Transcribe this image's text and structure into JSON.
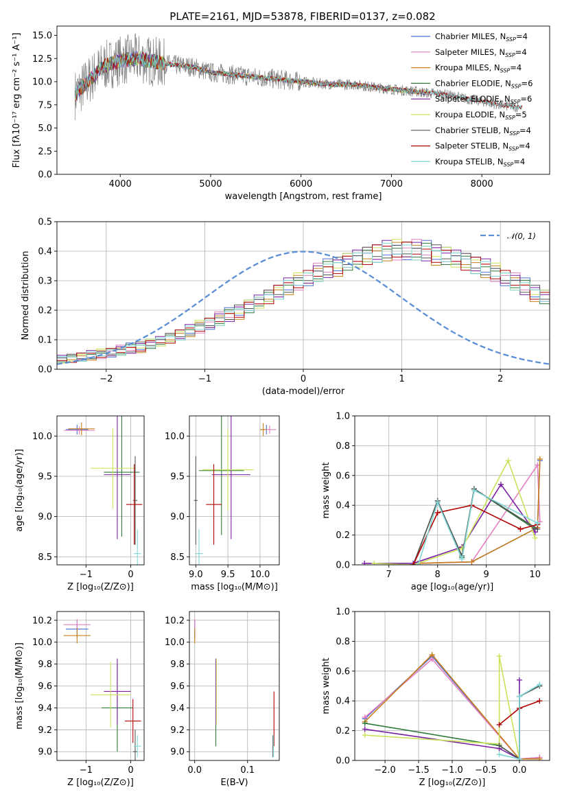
{
  "figure_title": "PLATE=2161, MJD=53878, FIBERID=0137, z=0.082",
  "colors": {
    "chabrier_miles": "#4a6fd6",
    "salpeter_miles": "#e37fc0",
    "kroupa_miles": "#c97f1a",
    "chabrier_elodie": "#2f7a3a",
    "salpeter_elodie": "#7b1fa2",
    "kroupa_elodie": "#c9e25a",
    "chabrier_stelib": "#555555",
    "salpeter_stelib": "#b00000",
    "kroupa_stelib": "#7fd6d6",
    "data_gray": "#808080",
    "normal_curve": "#5b8ed6"
  },
  "legend": {
    "spectrum": [
      {
        "name": "Chabrier MILES, N",
        "sub": "SSP",
        "tail": "=4",
        "color_key": "chabrier_miles"
      },
      {
        "name": "Salpeter MILES, N",
        "sub": "SSP",
        "tail": "=4",
        "color_key": "salpeter_miles"
      },
      {
        "name": "Kroupa MILES, N",
        "sub": "SSP",
        "tail": "=4",
        "color_key": "kroupa_miles"
      },
      {
        "name": "Chabrier ELODIE, N",
        "sub": "SSP",
        "tail": "=6",
        "color_key": "chabrier_elodie"
      },
      {
        "name": "Salpeter ELODIE, N",
        "sub": "SSP",
        "tail": "=6",
        "color_key": "salpeter_elodie"
      },
      {
        "name": "Kroupa ELODIE, N",
        "sub": "SSP",
        "tail": "=5",
        "color_key": "kroupa_elodie"
      },
      {
        "name": "Chabrier STELIB, N",
        "sub": "SSP",
        "tail": "=4",
        "color_key": "chabrier_stelib"
      },
      {
        "name": "Salpeter STELIB, N",
        "sub": "SSP",
        "tail": "=4",
        "color_key": "salpeter_stelib"
      },
      {
        "name": "Kroupa STELIB, N",
        "sub": "SSP",
        "tail": "=4",
        "color_key": "kroupa_stelib"
      }
    ],
    "residual": "𝒩(0, 1)"
  },
  "chart_data": [
    {
      "id": "spectrum",
      "type": "line",
      "xlabel": "wavelength [Angstrom, rest frame]",
      "ylabel": "Flux [fλ10⁻¹⁷ erg cm⁻² s⁻¹ A⁻¹]",
      "xlim": [
        3300,
        8750
      ],
      "ylim": [
        0,
        16
      ],
      "xticks": [
        4000,
        5000,
        6000,
        7000,
        8000
      ],
      "yticks": [
        0.0,
        2.5,
        5.0,
        7.5,
        10.0,
        12.5,
        15.0
      ],
      "grid": false,
      "legend_position": "upper-right",
      "continuum": {
        "x": [
          3500,
          3800,
          4000,
          4200,
          4400,
          4600,
          4800,
          5000,
          5200,
          5400,
          5600,
          5800,
          6000,
          6200,
          6400,
          6600,
          6800,
          7000,
          7200,
          7400,
          7600,
          7800,
          8000,
          8200,
          8450
        ],
        "y": [
          8.6,
          11.6,
          12.3,
          12.5,
          12.1,
          11.8,
          11.6,
          11.0,
          10.8,
          10.6,
          10.4,
          10.2,
          10.0,
          9.8,
          9.7,
          9.7,
          9.4,
          9.2,
          9.0,
          8.8,
          8.6,
          8.2,
          7.9,
          7.5,
          7.2
        ]
      },
      "data_range": [
        3500,
        8400
      ],
      "model_range": [
        3500,
        7420
      ],
      "stelib_range": [
        3500,
        8450
      ]
    },
    {
      "id": "residuals",
      "type": "step",
      "xlabel": "(data-model)/error",
      "ylabel": "Normed distribution",
      "xlim": [
        -2.5,
        2.5
      ],
      "ylim": [
        0,
        0.5
      ],
      "xticks": [
        -2,
        -1,
        0,
        1,
        2
      ],
      "yticks": [
        0.0,
        0.1,
        0.2,
        0.3,
        0.4,
        0.5
      ],
      "grid": true,
      "legend_position": "upper-right",
      "bin_width": 0.1,
      "bin_start": -2.5,
      "base_values": [
        0.034,
        0.037,
        0.041,
        0.045,
        0.05,
        0.056,
        0.062,
        0.069,
        0.077,
        0.086,
        0.095,
        0.105,
        0.116,
        0.128,
        0.141,
        0.154,
        0.168,
        0.182,
        0.197,
        0.213,
        0.229,
        0.245,
        0.261,
        0.277,
        0.293,
        0.309,
        0.324,
        0.338,
        0.352,
        0.364,
        0.375,
        0.384,
        0.392,
        0.397,
        0.4,
        0.401,
        0.4,
        0.397,
        0.392,
        0.384,
        0.375,
        0.364,
        0.352,
        0.338,
        0.324,
        0.309,
        0.293,
        0.277,
        0.261,
        0.245
      ],
      "series_offsets": [
        [
          0.01,
          -0.02,
          0.03,
          -0.01,
          0.02,
          -0.03,
          0.01,
          0.04,
          -0.02,
          0.03
        ],
        [
          -0.01,
          0.03,
          -0.02,
          0.02,
          -0.03,
          0.01,
          0.04,
          -0.01,
          0.02,
          -0.02
        ],
        [
          0.02,
          -0.01,
          0.01,
          -0.03,
          0.03,
          -0.02,
          0.02,
          0.01,
          -0.04,
          0.02
        ],
        [
          -0.02,
          0.02,
          -0.03,
          0.01,
          0.01,
          0.03,
          -0.02,
          0.03,
          0.01,
          -0.03
        ],
        [
          0.03,
          0.01,
          -0.02,
          0.04,
          -0.01,
          -0.02,
          0.03,
          -0.03,
          0.02,
          0.01
        ],
        [
          -0.03,
          -0.02,
          0.02,
          -0.02,
          0.04,
          0.02,
          -0.03,
          0.02,
          -0.01,
          0.03
        ],
        [
          0.01,
          0.03,
          -0.01,
          -0.02,
          0.02,
          -0.01,
          0.01,
          -0.02,
          0.03,
          -0.01
        ],
        [
          -0.01,
          -0.03,
          0.03,
          0.02,
          -0.02,
          0.03,
          -0.01,
          0.01,
          -0.03,
          0.02
        ],
        [
          0.02,
          0.01,
          -0.03,
          0.03,
          -0.01,
          0.02,
          -0.03,
          0.02,
          0.01,
          -0.02
        ]
      ]
    },
    {
      "id": "age-vs-Z",
      "type": "scatter",
      "xlabel": "Z [log₁₀(Z/Z⊙)]",
      "ylabel": "age  [log₁₀(age/yr)]",
      "xlim": [
        -1.65,
        0.3
      ],
      "ylim": [
        8.4,
        10.25
      ],
      "xticks": [
        -1,
        0
      ],
      "yticks": [
        8.5,
        9.0,
        9.5,
        10.0
      ],
      "grid": true,
      "points": [
        {
          "x": -1.2,
          "y": 10.08,
          "xerr": 0.25,
          "yerr": 0.06,
          "color_key": "chabrier_miles"
        },
        {
          "x": -1.15,
          "y": 10.07,
          "xerr": 0.35,
          "yerr": 0.05,
          "color_key": "salpeter_miles"
        },
        {
          "x": -1.1,
          "y": 10.09,
          "xerr": 0.3,
          "yerr": 0.08,
          "color_key": "kroupa_miles"
        },
        {
          "x": -0.2,
          "y": 9.55,
          "xerr": 0.4,
          "yerr": 0.8,
          "color_key": "chabrier_elodie"
        },
        {
          "x": -0.3,
          "y": 9.52,
          "xerr": 0.3,
          "yerr": 0.8,
          "color_key": "salpeter_elodie"
        },
        {
          "x": -0.4,
          "y": 9.6,
          "xerr": 0.5,
          "yerr": 0.5,
          "color_key": "kroupa_elodie"
        },
        {
          "x": 0.1,
          "y": 9.2,
          "xerr": 0.05,
          "yerr": 0.55,
          "color_key": "chabrier_stelib"
        },
        {
          "x": 0.08,
          "y": 9.15,
          "xerr": 0.18,
          "yerr": 0.5,
          "color_key": "salpeter_stelib"
        },
        {
          "x": 0.15,
          "y": 8.54,
          "xerr": 0.08,
          "yerr": 0.3,
          "color_key": "kroupa_stelib"
        }
      ]
    },
    {
      "id": "age-vs-mass",
      "type": "scatter",
      "xlabel": "mass [log₁₀(M/M⊙)]",
      "ylabel": "",
      "xlim": [
        8.9,
        10.3
      ],
      "ylim": [
        8.4,
        10.25
      ],
      "xticks": [
        9.0,
        9.5,
        10.0
      ],
      "yticks": [
        8.5,
        9.0,
        9.5,
        10.0
      ],
      "grid": true,
      "points": [
        {
          "x": 10.1,
          "y": 10.08,
          "xerr": 0.08,
          "yerr": 0.06,
          "color_key": "chabrier_miles"
        },
        {
          "x": 10.15,
          "y": 10.08,
          "xerr": 0.1,
          "yerr": 0.05,
          "color_key": "salpeter_miles"
        },
        {
          "x": 10.05,
          "y": 10.08,
          "xerr": 0.05,
          "yerr": 0.08,
          "color_key": "kroupa_miles"
        },
        {
          "x": 9.4,
          "y": 9.57,
          "xerr": 0.35,
          "yerr": 0.8,
          "color_key": "chabrier_elodie"
        },
        {
          "x": 9.55,
          "y": 9.52,
          "xerr": 0.3,
          "yerr": 0.8,
          "color_key": "salpeter_elodie"
        },
        {
          "x": 9.5,
          "y": 9.58,
          "xerr": 0.4,
          "yerr": 0.5,
          "color_key": "kroupa_elodie"
        },
        {
          "x": 9.0,
          "y": 9.2,
          "xerr": 0.03,
          "yerr": 0.55,
          "color_key": "chabrier_stelib"
        },
        {
          "x": 9.28,
          "y": 9.15,
          "xerr": 0.12,
          "yerr": 0.5,
          "color_key": "salpeter_stelib"
        },
        {
          "x": 9.05,
          "y": 8.54,
          "xerr": 0.06,
          "yerr": 0.3,
          "color_key": "kroupa_stelib"
        }
      ]
    },
    {
      "id": "massweight-vs-age",
      "type": "line",
      "xlabel": "age  [log₁₀(age/yr)]",
      "ylabel": "mass weight",
      "xlim": [
        6.3,
        10.3
      ],
      "ylim": [
        0,
        1
      ],
      "xticks": [
        7,
        8,
        9,
        10
      ],
      "yticks": [
        0.0,
        0.2,
        0.4,
        0.6,
        0.8,
        1.0
      ],
      "grid": true,
      "series": [
        {
          "color_key": "chabrier_miles",
          "x": [
            7.6,
            8.7,
            10.05,
            10.1
          ],
          "y": [
            0.01,
            0.02,
            0.25,
            0.7
          ]
        },
        {
          "color_key": "salpeter_miles",
          "x": [
            7.6,
            8.7,
            10.05,
            10.1
          ],
          "y": [
            0.01,
            0.02,
            0.67,
            0.29
          ]
        },
        {
          "color_key": "kroupa_miles",
          "x": [
            7.6,
            8.7,
            10.05,
            10.1
          ],
          "y": [
            0.01,
            0.02,
            0.25,
            0.71
          ]
        },
        {
          "color_key": "chabrier_elodie",
          "x": [
            7.5,
            8.0,
            8.5,
            8.75,
            10.0
          ],
          "y": [
            0.0,
            0.43,
            0.05,
            0.51,
            0.24
          ]
        },
        {
          "color_key": "salpeter_elodie",
          "x": [
            6.5,
            7.5,
            8.5,
            9.3,
            10.0
          ],
          "y": [
            0.01,
            0.01,
            0.12,
            0.54,
            0.22
          ]
        },
        {
          "color_key": "kroupa_elodie",
          "x": [
            6.7,
            7.5,
            8.5,
            9.45,
            10.0
          ],
          "y": [
            0.01,
            0.0,
            0.11,
            0.7,
            0.18
          ]
        },
        {
          "color_key": "chabrier_stelib",
          "x": [
            7.5,
            8.0,
            8.5,
            8.75,
            10.05
          ],
          "y": [
            0.0,
            0.43,
            0.06,
            0.51,
            0.24
          ]
        },
        {
          "color_key": "salpeter_stelib",
          "x": [
            7.5,
            8.0,
            8.7,
            9.7,
            10.05
          ],
          "y": [
            0.0,
            0.35,
            0.4,
            0.24,
            0.27
          ]
        },
        {
          "color_key": "kroupa_stelib",
          "x": [
            7.6,
            8.0,
            8.5,
            8.75,
            10.05
          ],
          "y": [
            0.0,
            0.42,
            0.04,
            0.5,
            0.28
          ]
        }
      ]
    },
    {
      "id": "mass-vs-Z",
      "type": "scatter",
      "xlabel": "Z [log₁₀(Z/Z⊙)]",
      "ylabel": "mass [log₁₀(M/M⊙)]",
      "xlim": [
        -1.65,
        0.3
      ],
      "ylim": [
        8.92,
        10.28
      ],
      "xticks": [
        -1,
        0
      ],
      "yticks": [
        9.0,
        9.2,
        9.4,
        9.6,
        9.8,
        10.0,
        10.2
      ],
      "grid": true,
      "points": [
        {
          "x": -1.2,
          "y": 10.12,
          "xerr": 0.25,
          "yerr": 0.08,
          "color_key": "chabrier_miles"
        },
        {
          "x": -1.2,
          "y": 10.16,
          "xerr": 0.3,
          "yerr": 0.05,
          "color_key": "salpeter_miles"
        },
        {
          "x": -1.2,
          "y": 10.06,
          "xerr": 0.3,
          "yerr": 0.07,
          "color_key": "kroupa_miles"
        },
        {
          "x": -0.3,
          "y": 9.4,
          "xerr": 0.35,
          "yerr": 0.4,
          "color_key": "chabrier_elodie"
        },
        {
          "x": -0.3,
          "y": 9.55,
          "xerr": 0.3,
          "yerr": 0.3,
          "color_key": "salpeter_elodie"
        },
        {
          "x": -0.45,
          "y": 9.52,
          "xerr": 0.45,
          "yerr": 0.3,
          "color_key": "kroupa_elodie"
        },
        {
          "x": 0.1,
          "y": 9.0,
          "xerr": 0.05,
          "yerr": 0.2,
          "color_key": "chabrier_stelib"
        },
        {
          "x": 0.05,
          "y": 9.28,
          "xerr": 0.18,
          "yerr": 0.2,
          "color_key": "salpeter_stelib"
        },
        {
          "x": 0.15,
          "y": 9.05,
          "xerr": 0.08,
          "yerr": 0.1,
          "color_key": "kroupa_stelib"
        }
      ]
    },
    {
      "id": "mass-vs-ebv",
      "type": "scatter",
      "xlabel": "E(B-V)",
      "ylabel": "",
      "xlim": [
        -0.01,
        0.16
      ],
      "ylim": [
        8.92,
        10.28
      ],
      "xticks": [
        0.0,
        0.1
      ],
      "yticks": [
        9.0,
        9.2,
        9.4,
        9.6,
        9.8,
        10.0,
        10.2
      ],
      "grid": true,
      "points": [
        {
          "x": 0.0,
          "y": 10.12,
          "xerr": 0.0,
          "yerr": 0.08,
          "color_key": "chabrier_miles"
        },
        {
          "x": 0.0,
          "y": 10.16,
          "xerr": 0.0,
          "yerr": 0.05,
          "color_key": "salpeter_miles"
        },
        {
          "x": 0.0,
          "y": 10.06,
          "xerr": 0.0,
          "yerr": 0.07,
          "color_key": "kroupa_miles"
        },
        {
          "x": 0.04,
          "y": 9.45,
          "xerr": 0.0,
          "yerr": 0.4,
          "color_key": "chabrier_elodie"
        },
        {
          "x": 0.04,
          "y": 9.55,
          "xerr": 0.0,
          "yerr": 0.3,
          "color_key": "salpeter_elodie"
        },
        {
          "x": 0.041,
          "y": 9.55,
          "xerr": 0.0,
          "yerr": 0.3,
          "color_key": "kroupa_elodie"
        },
        {
          "x": 0.148,
          "y": 9.05,
          "xerr": 0.0,
          "yerr": 0.1,
          "color_key": "chabrier_stelib"
        },
        {
          "x": 0.15,
          "y": 9.3,
          "xerr": 0.0,
          "yerr": 0.25,
          "color_key": "salpeter_stelib"
        },
        {
          "x": 0.149,
          "y": 9.05,
          "xerr": 0.0,
          "yerr": 0.1,
          "color_key": "kroupa_stelib"
        }
      ]
    },
    {
      "id": "massweight-vs-Z",
      "type": "line",
      "xlabel": "Z [log₁₀(Z/Z⊙)]",
      "ylabel": "mass weight",
      "xlim": [
        -2.45,
        0.45
      ],
      "ylim": [
        0,
        1
      ],
      "xticks": [
        -2.0,
        -1.5,
        -1.0,
        -0.5,
        0.0
      ],
      "yticks": [
        0.0,
        0.2,
        0.4,
        0.6,
        0.8,
        1.0
      ],
      "grid": true,
      "series": [
        {
          "color_key": "chabrier_miles",
          "x": [
            -2.3,
            -1.3,
            0.0,
            0.3
          ],
          "y": [
            0.28,
            0.7,
            0.01,
            0.02
          ]
        },
        {
          "color_key": "salpeter_miles",
          "x": [
            -2.3,
            -1.3,
            0.0,
            0.3
          ],
          "y": [
            0.29,
            0.68,
            0.01,
            0.02
          ]
        },
        {
          "color_key": "kroupa_miles",
          "x": [
            -2.3,
            -1.3,
            0.0,
            0.3
          ],
          "y": [
            0.26,
            0.71,
            0.01,
            0.01
          ]
        },
        {
          "color_key": "chabrier_elodie",
          "x": [
            -2.3,
            -0.3,
            0.0,
            0.0,
            0.3
          ],
          "y": [
            0.25,
            0.1,
            0.01,
            0.43,
            0.5
          ]
        },
        {
          "color_key": "salpeter_elodie",
          "x": [
            -2.3,
            -0.3,
            0.0,
            0.0
          ],
          "y": [
            0.21,
            0.08,
            0.01,
            0.54
          ]
        },
        {
          "color_key": "kroupa_elodie",
          "x": [
            -2.3,
            -0.3,
            -0.3,
            0.0
          ],
          "y": [
            0.17,
            0.11,
            0.7,
            0.01
          ]
        },
        {
          "color_key": "chabrier_stelib",
          "x": [
            -0.3,
            0.0,
            0.0,
            0.3
          ],
          "y": [
            0.1,
            0.01,
            0.43,
            0.5
          ]
        },
        {
          "color_key": "salpeter_stelib",
          "x": [
            -0.3,
            0.0,
            0.3
          ],
          "y": [
            0.24,
            0.35,
            0.4
          ]
        },
        {
          "color_key": "kroupa_stelib",
          "x": [
            -0.3,
            0.0,
            0.0,
            0.3
          ],
          "y": [
            0.04,
            0.01,
            0.43,
            0.51
          ]
        }
      ]
    }
  ]
}
